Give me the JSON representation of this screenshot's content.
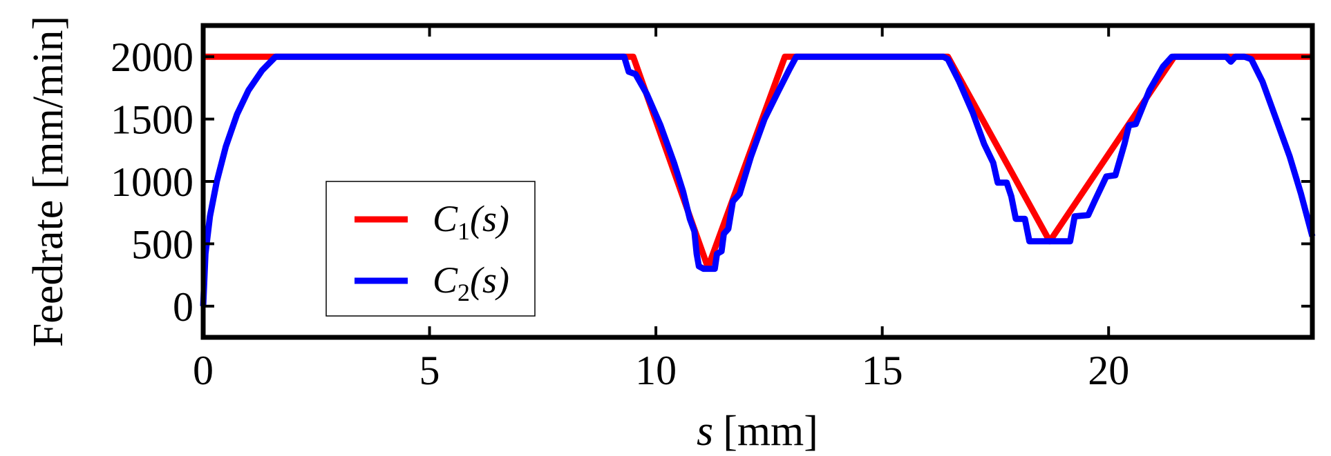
{
  "chart_data": {
    "type": "line",
    "xlabel_var": "s",
    "xlabel_unit": "[mm]",
    "ylabel": "Feedrate [mm/min]",
    "xlim": [
      0,
      24.5
    ],
    "ylim": [
      -250,
      2250
    ],
    "xticks": [
      0,
      5,
      10,
      15,
      20
    ],
    "yticks": [
      0,
      500,
      1000,
      1500,
      2000
    ],
    "grid": false,
    "legend_position": "lower-left",
    "series": [
      {
        "name": "C1(s)",
        "label_var": "C",
        "label_sub": "1",
        "label_arg": "(s)",
        "color": "#ff0000",
        "x": [
          0,
          24.5,
          24.5
        ],
        "y": [
          2000,
          2000,
          2000
        ],
        "points": [
          [
            0,
            2000
          ],
          [
            9.5,
            2000
          ],
          [
            11.15,
            310
          ],
          [
            12.85,
            2000
          ],
          [
            16.45,
            2000
          ],
          [
            18.7,
            520
          ],
          [
            21.45,
            2000
          ],
          [
            24.5,
            2000
          ]
        ]
      },
      {
        "name": "C2(s)",
        "label_var": "C",
        "label_sub": "2",
        "label_arg": "(s)",
        "color": "#0000ff",
        "points": [
          [
            0,
            0
          ],
          [
            0.05,
            420
          ],
          [
            0.15,
            720
          ],
          [
            0.3,
            1000
          ],
          [
            0.5,
            1280
          ],
          [
            0.75,
            1540
          ],
          [
            1.0,
            1730
          ],
          [
            1.3,
            1890
          ],
          [
            1.6,
            2000
          ],
          [
            9.3,
            2000
          ],
          [
            9.4,
            1880
          ],
          [
            9.55,
            1860
          ],
          [
            9.8,
            1700
          ],
          [
            10.1,
            1450
          ],
          [
            10.4,
            1150
          ],
          [
            10.6,
            920
          ],
          [
            10.75,
            700
          ],
          [
            10.85,
            600
          ],
          [
            10.9,
            420
          ],
          [
            10.95,
            320
          ],
          [
            11.05,
            300
          ],
          [
            11.3,
            300
          ],
          [
            11.35,
            420
          ],
          [
            11.45,
            440
          ],
          [
            11.5,
            580
          ],
          [
            11.6,
            620
          ],
          [
            11.7,
            840
          ],
          [
            11.85,
            900
          ],
          [
            12.1,
            1200
          ],
          [
            12.4,
            1500
          ],
          [
            12.7,
            1720
          ],
          [
            12.95,
            1900
          ],
          [
            13.1,
            2000
          ],
          [
            16.35,
            2000
          ],
          [
            16.45,
            1980
          ],
          [
            16.7,
            1800
          ],
          [
            17.0,
            1550
          ],
          [
            17.25,
            1300
          ],
          [
            17.45,
            1150
          ],
          [
            17.55,
            990
          ],
          [
            17.75,
            990
          ],
          [
            17.85,
            880
          ],
          [
            17.95,
            700
          ],
          [
            18.15,
            700
          ],
          [
            18.25,
            520
          ],
          [
            19.15,
            520
          ],
          [
            19.25,
            720
          ],
          [
            19.55,
            730
          ],
          [
            19.7,
            850
          ],
          [
            19.95,
            1040
          ],
          [
            20.15,
            1050
          ],
          [
            20.35,
            1300
          ],
          [
            20.45,
            1450
          ],
          [
            20.6,
            1460
          ],
          [
            20.9,
            1730
          ],
          [
            21.2,
            1920
          ],
          [
            21.4,
            2000
          ],
          [
            22.6,
            2000
          ],
          [
            22.7,
            1960
          ],
          [
            22.8,
            2000
          ],
          [
            23.0,
            2000
          ],
          [
            23.15,
            1980
          ],
          [
            23.4,
            1800
          ],
          [
            23.7,
            1500
          ],
          [
            24.0,
            1200
          ],
          [
            24.25,
            900
          ],
          [
            24.5,
            560
          ]
        ]
      }
    ]
  }
}
